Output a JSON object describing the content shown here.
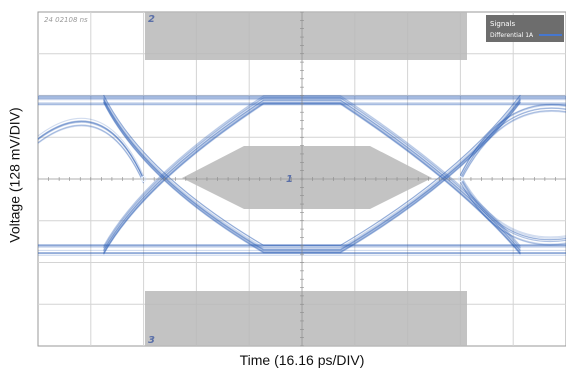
{
  "chart_data": {
    "type": "scatter",
    "title": "",
    "xlabel": "Time (16.16 ps/DIV)",
    "ylabel": "Voltage (128 mV/DIV)",
    "timestamp": "24 02108 ns",
    "legend": {
      "title": "Signals",
      "entries": [
        "Differential 1A"
      ],
      "placement": "top-right"
    },
    "x_divisions": 10,
    "y_divisions": 8,
    "grid": true,
    "eye": {
      "crossing_times_div": [
        2.0,
        8.0
      ],
      "high_level_div": 1.9,
      "low_level_div": -1.7,
      "trace_color": "#2e5fb8"
    },
    "mask_regions": [
      {
        "label": "1",
        "kind": "center-polygon"
      },
      {
        "label": "2",
        "kind": "top-rectangle"
      },
      {
        "label": "3",
        "kind": "bottom-rectangle"
      }
    ]
  }
}
